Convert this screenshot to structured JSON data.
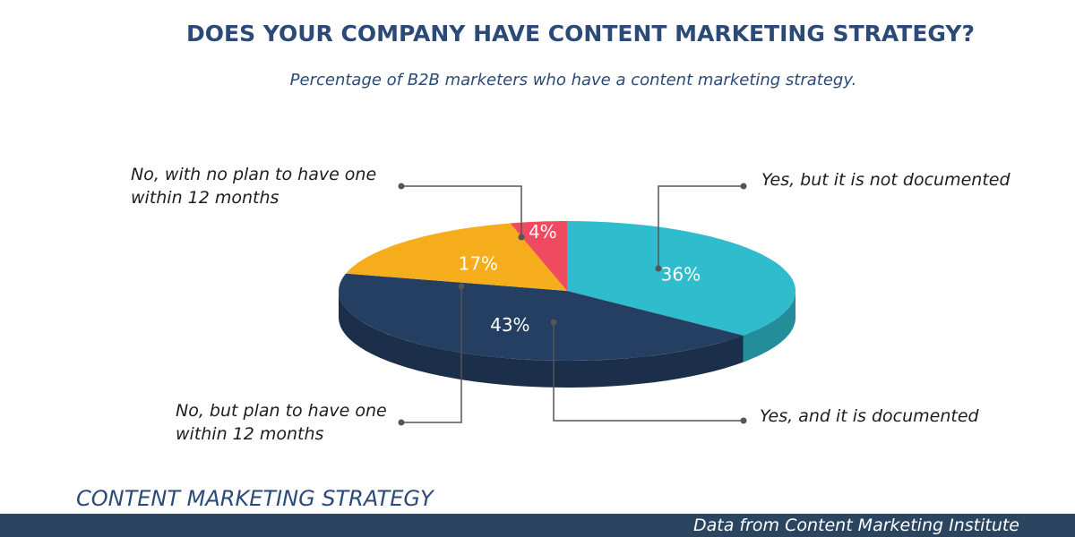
{
  "chart_data": {
    "type": "pie3d",
    "title": "DOES YOUR COMPANY HAVE CONTENT MARKETING STRATEGY?",
    "subtitle": "Percentage  of B2B marketers who have a content marketing strategy.",
    "categories": [
      "Yes, but it is not documented",
      "Yes, and it is documented",
      "No, but plan to have one within 12 months",
      "No, with no plan to have one within 12 months"
    ],
    "values": [
      36,
      43,
      17,
      4
    ],
    "value_labels": [
      "36%",
      "43%",
      "17%",
      "4%"
    ],
    "colors": [
      "#2fbccc",
      "#253f63",
      "#f5ad1b",
      "#ef4a5f"
    ],
    "footer": "CONTENT MARKETING STRATEGY",
    "source": "Data from Content Marketing Institute"
  }
}
